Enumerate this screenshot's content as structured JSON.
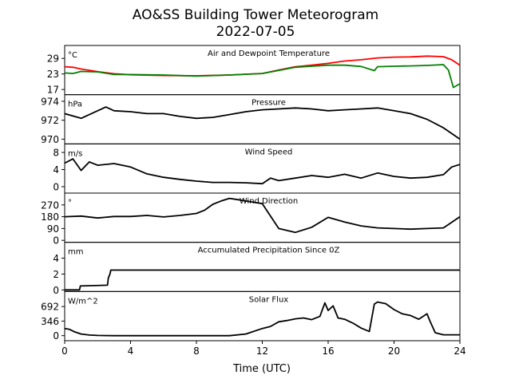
{
  "title": "AO&SS Building Tower Meteorogram",
  "subtitle": "2022-07-05",
  "chart_data": {
    "type": "line",
    "xlabel": "Time (UTC)",
    "xlim": [
      0,
      24
    ],
    "x_ticks": [
      0,
      4,
      8,
      12,
      16,
      20,
      24
    ],
    "panels": [
      {
        "title": "Air and Dewpoint Temperature",
        "unit": "°C",
        "ylim": [
          15,
          34
        ],
        "yticks": [
          17,
          23,
          29
        ],
        "series": [
          {
            "color": "#ff0000",
            "x": [
              0,
              0.5,
              1,
              2,
              3,
              4,
              6,
              8,
              10,
              12,
              13,
              14,
              15,
              16,
              17,
              18,
              19,
              20,
              21,
              22,
              23,
              23.5,
              24
            ],
            "y": [
              25.8,
              25.6,
              24.9,
              23.9,
              23.1,
              22.7,
              22.4,
              22.3,
              22.6,
              23.2,
              24.5,
              25.8,
              26.4,
              27.1,
              28.0,
              28.5,
              29.2,
              29.5,
              29.6,
              29.9,
              29.7,
              28.5,
              26.4
            ]
          },
          {
            "color": "#008000",
            "x": [
              0,
              0.5,
              1,
              2,
              3,
              4,
              6,
              8,
              10,
              12,
              13,
              14,
              15,
              16,
              17,
              18,
              18.8,
              19,
              20,
              21,
              22,
              23,
              23.3,
              23.6,
              24
            ],
            "y": [
              23.4,
              23.2,
              24.0,
              23.8,
              22.8,
              22.8,
              22.6,
              22.2,
              22.6,
              23.2,
              24.4,
              25.6,
              26.0,
              26.4,
              26.4,
              25.9,
              24.3,
              25.8,
              26.0,
              26.1,
              26.3,
              26.6,
              24.5,
              17.8,
              19.2
            ]
          }
        ]
      },
      {
        "title": "Pressure",
        "unit": "hPa",
        "ylim": [
          969.5,
          974.7
        ],
        "yticks": [
          970,
          972,
          974
        ],
        "series": [
          {
            "color": "#000000",
            "x": [
              0,
              1,
              2,
              2.5,
              3,
              4,
              5,
              6,
              7,
              8,
              9,
              10,
              11,
              12,
              13,
              14,
              15,
              16,
              17,
              18,
              19,
              20,
              21,
              22,
              23,
              24
            ],
            "y": [
              972.7,
              972.2,
              973.0,
              973.4,
              973.0,
              972.9,
              972.7,
              972.7,
              972.4,
              972.2,
              972.3,
              972.6,
              972.9,
              973.1,
              973.2,
              973.3,
              973.2,
              973.0,
              973.1,
              973.2,
              973.3,
              973.0,
              972.7,
              972.1,
              971.2,
              970.0
            ]
          }
        ]
      },
      {
        "title": "Wind Speed",
        "unit": "m/s",
        "ylim": [
          -1.5,
          10
        ],
        "yticks": [
          0,
          4,
          8
        ],
        "series": [
          {
            "color": "#000000",
            "x": [
              0,
              0.5,
              1,
              1.5,
              2,
              3,
              4,
              5,
              6,
              7,
              8,
              9,
              10,
              11,
              12,
              12.5,
              13,
              14,
              15,
              16,
              17,
              18,
              19,
              20,
              21,
              22,
              23,
              23.5,
              24
            ],
            "y": [
              5.5,
              6.5,
              3.8,
              5.8,
              5.0,
              5.4,
              4.6,
              3.0,
              2.2,
              1.7,
              1.3,
              1.0,
              1.0,
              0.9,
              0.7,
              2.0,
              1.4,
              2.0,
              2.6,
              2.2,
              2.9,
              2.0,
              3.2,
              2.4,
              2.0,
              2.2,
              2.8,
              4.6,
              5.2
            ]
          }
        ]
      },
      {
        "title": "Wind Direction",
        "unit": "°",
        "ylim": [
          -15,
          360
        ],
        "yticks": [
          0,
          90,
          180,
          270
        ],
        "series": [
          {
            "color": "#000000",
            "x": [
              0,
              1,
              2,
              3,
              4,
              5,
              6,
              7,
              8,
              8.5,
              9,
              9.5,
              10,
              10.5,
              11,
              12,
              13,
              14,
              15,
              16,
              17,
              18,
              19,
              20,
              21,
              22,
              23,
              24
            ],
            "y": [
              180,
              185,
              170,
              182,
              182,
              190,
              178,
              190,
              205,
              230,
              275,
              300,
              320,
              310,
              300,
              280,
              90,
              60,
              100,
              175,
              140,
              110,
              95,
              90,
              85,
              90,
              95,
              180
            ]
          }
        ]
      },
      {
        "title": "Accumulated Precipitation Since 0Z",
        "unit": "mm",
        "ylim": [
          -0.2,
          6.0
        ],
        "yticks": [
          0,
          2,
          4
        ],
        "series": [
          {
            "color": "#000000",
            "x": [
              0,
              0.9,
              0.95,
              2.6,
              2.65,
              2.75,
              2.8,
              24
            ],
            "y": [
              0,
              0,
              0.5,
              0.6,
              1.5,
              2.0,
              2.5,
              2.5
            ]
          }
        ]
      },
      {
        "title": "Solar Flux",
        "unit": "W/m^2",
        "ylim": [
          -120,
          1050
        ],
        "yticks": [
          0,
          346,
          692
        ],
        "series": [
          {
            "color": "#000000",
            "x": [
              0,
              0.3,
              0.6,
              1,
              1.5,
              2,
              3,
              4,
              6,
              8,
              10,
              11,
              12,
              12.5,
              13,
              13.5,
              14,
              14.5,
              15,
              15.5,
              15.8,
              16,
              16.3,
              16.6,
              17,
              17.5,
              18,
              18.5,
              18.8,
              19,
              19.5,
              20,
              20.5,
              21,
              21.5,
              22,
              22.2,
              22.5,
              23,
              24
            ],
            "y": [
              170,
              150,
              90,
              40,
              15,
              5,
              0,
              0,
              0,
              0,
              0,
              40,
              170,
              220,
              330,
              360,
              400,
              420,
              380,
              460,
              780,
              600,
              710,
              420,
              390,
              300,
              180,
              100,
              750,
              800,
              760,
              620,
              520,
              480,
              390,
              520,
              330,
              70,
              20,
              20
            ]
          }
        ]
      }
    ]
  }
}
